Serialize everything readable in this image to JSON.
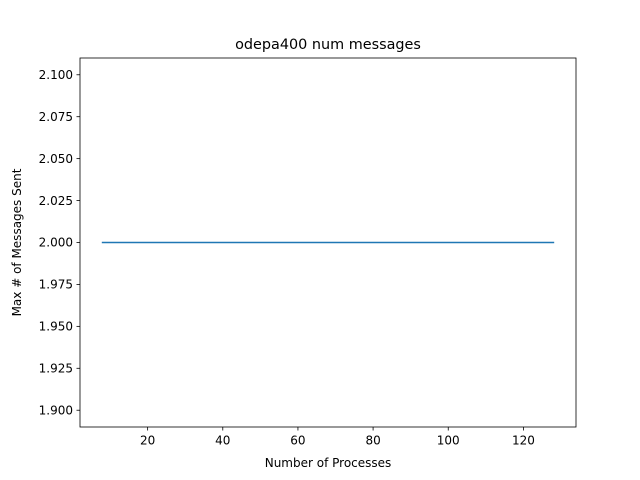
{
  "chart_data": {
    "type": "line",
    "title": "odepa400 num messages",
    "xlabel": "Number of Processes",
    "ylabel": "Max # of Messages Sent",
    "xlim": [
      2,
      134
    ],
    "ylim": [
      1.89,
      2.11
    ],
    "xticks": [
      20,
      40,
      60,
      80,
      100,
      120
    ],
    "yticks": [
      1.9,
      1.925,
      1.95,
      1.975,
      2.0,
      2.025,
      2.05,
      2.075,
      2.1
    ],
    "ytick_labels": [
      "1.900",
      "1.925",
      "1.950",
      "1.975",
      "2.000",
      "2.025",
      "2.050",
      "2.075",
      "2.100"
    ],
    "grid": false,
    "series": [
      {
        "color": "#1f77b4",
        "x": [
          8,
          128
        ],
        "y": [
          2.0,
          2.0
        ]
      }
    ]
  }
}
